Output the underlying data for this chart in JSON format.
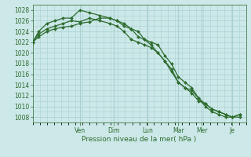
{
  "background_color": "#cce8e8",
  "grid_color": "#aacfcf",
  "line_color": "#2d6b2d",
  "tick_color": "#2d6b2d",
  "xlabel": "Pression niveau de la mer( hPa )",
  "ylim": [
    1007,
    1029
  ],
  "yticks": [
    1008,
    1010,
    1012,
    1014,
    1016,
    1018,
    1020,
    1022,
    1024,
    1026,
    1028
  ],
  "x_day_labels": [
    "Ven",
    "Dim",
    "Lun",
    "Mar",
    "Mer",
    "Je"
  ],
  "x_day_positions": [
    2.33,
    4.0,
    5.67,
    7.17,
    8.33,
    9.83
  ],
  "xlim": [
    0,
    10.5
  ],
  "line1_x": [
    0.0,
    0.3,
    0.7,
    1.1,
    1.5,
    1.9,
    2.33,
    2.8,
    3.3,
    3.8,
    4.15,
    4.5,
    4.85,
    5.2,
    5.5,
    5.83,
    6.17,
    6.5,
    6.83,
    7.17,
    7.5,
    7.83,
    8.17,
    8.5,
    8.83,
    9.17,
    9.5,
    9.83,
    10.2
  ],
  "line1_y": [
    1022.0,
    1023.5,
    1024.5,
    1025.0,
    1025.5,
    1026.0,
    1025.8,
    1026.5,
    1026.0,
    1025.5,
    1025.0,
    1024.0,
    1022.5,
    1022.0,
    1021.5,
    1021.0,
    1020.0,
    1018.5,
    1017.0,
    1014.5,
    1013.5,
    1013.0,
    1011.5,
    1010.0,
    1009.0,
    1008.5,
    1008.0,
    1008.0,
    1008.5
  ],
  "line2_x": [
    0.0,
    0.3,
    0.7,
    1.1,
    1.5,
    1.9,
    2.33,
    2.8,
    3.3,
    3.8,
    4.15,
    4.5,
    4.85,
    5.2,
    5.5,
    5.83,
    6.17,
    6.5,
    6.83,
    7.17,
    7.5,
    7.83,
    8.17,
    8.5,
    8.83,
    9.17,
    9.5,
    9.83,
    10.2
  ],
  "line2_y": [
    1022.0,
    1024.0,
    1025.5,
    1026.0,
    1026.5,
    1026.5,
    1028.0,
    1027.5,
    1027.0,
    1026.5,
    1026.0,
    1025.0,
    1024.5,
    1024.0,
    1022.5,
    1021.5,
    1020.0,
    1018.5,
    1016.5,
    1014.5,
    1013.5,
    1012.5,
    1011.0,
    1010.5,
    1009.5,
    1009.0,
    1008.5,
    1008.0,
    1008.5
  ],
  "line3_x": [
    0.0,
    0.3,
    0.7,
    1.1,
    1.5,
    1.9,
    2.33,
    2.8,
    3.3,
    3.8,
    4.15,
    4.5,
    4.85,
    5.2,
    5.5,
    5.83,
    6.17,
    6.5,
    6.83,
    7.17,
    7.5,
    7.83,
    8.17,
    8.5,
    8.83,
    9.17,
    9.5,
    9.83,
    10.2
  ],
  "line3_y": [
    1022.0,
    1023.0,
    1024.0,
    1024.5,
    1024.8,
    1025.0,
    1025.5,
    1025.8,
    1026.5,
    1026.5,
    1026.0,
    1025.5,
    1024.5,
    1023.0,
    1022.5,
    1022.0,
    1021.5,
    1019.5,
    1018.0,
    1015.5,
    1014.5,
    1013.5,
    1011.5,
    1010.5,
    1009.5,
    1009.0,
    1008.5,
    1008.0,
    1008.0
  ],
  "xlabel_fontsize": 6.5,
  "tick_fontsize": 5.5,
  "marker_size": 2.0,
  "line_width": 0.9
}
